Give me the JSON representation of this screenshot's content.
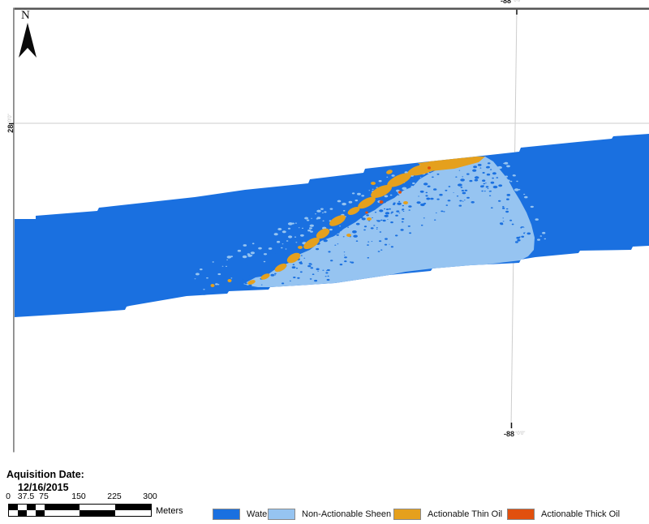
{
  "map": {
    "north_label": "N",
    "grid": {
      "top_label": "-88",
      "top_label_suffix": "°0'0\"",
      "bottom_label": "-88",
      "bottom_label_suffix": "°0'0\"",
      "left_label": "28",
      "left_label_suffix": "°0'0\""
    }
  },
  "acquisition": {
    "title": "Aquisition Date:",
    "date": "12/16/2015"
  },
  "scalebar": {
    "ticks": [
      "0",
      "37.5",
      "75",
      "150",
      "225",
      "300"
    ],
    "unit": "Meters"
  },
  "legend": {
    "items": [
      {
        "label": "Water",
        "color": "#1a70e0"
      },
      {
        "label": "Non-Actionable Sheen",
        "color": "#96c4f1"
      },
      {
        "label": "Actionable Thin Oil",
        "color": "#e5a01d"
      },
      {
        "label": "Actionable Thick Oil",
        "color": "#e1500e"
      }
    ]
  },
  "colors": {
    "water": "#1a70e0",
    "non_actionable_sheen": "#96c4f1",
    "actionable_thin_oil": "#e5a01d",
    "actionable_thick_oil": "#e1500e",
    "gridline": "#cdcdcd",
    "frame_top": "#565656",
    "frame_left": "#8a8a8a"
  }
}
